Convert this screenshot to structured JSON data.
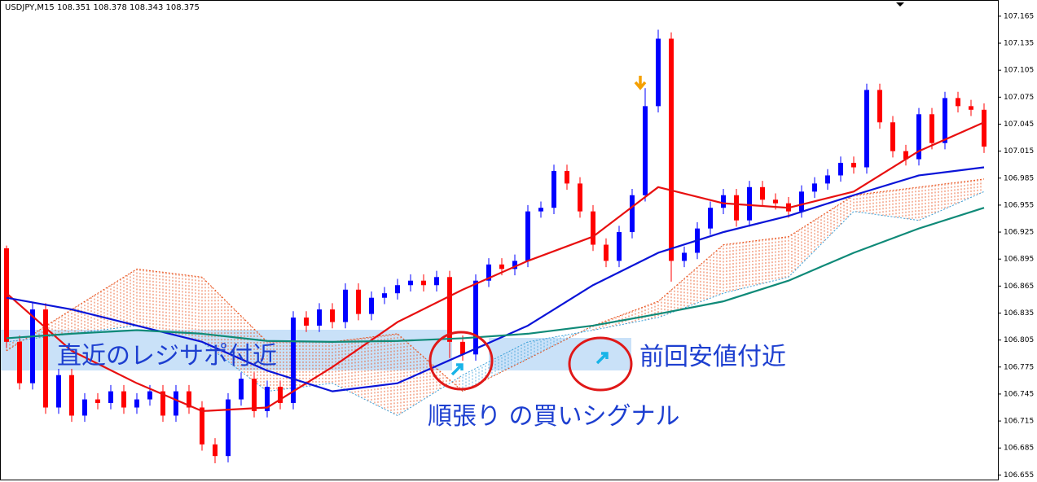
{
  "chart_data": {
    "type": "candlestick",
    "title": "USDJPY,M15  108.351 108.378 108.343 108.375",
    "ylim": [
      106.649,
      107.183
    ],
    "yticks": [
      107.165,
      107.135,
      107.105,
      107.075,
      107.045,
      107.015,
      106.985,
      106.955,
      106.925,
      106.895,
      106.865,
      106.835,
      106.805,
      106.775,
      106.745,
      106.715,
      106.685,
      106.655
    ],
    "up_color": "#0000ff",
    "down_color": "#ff0000",
    "candles": [
      [
        106.907,
        106.91,
        106.796,
        106.803
      ],
      [
        106.803,
        106.81,
        106.75,
        106.757
      ],
      [
        106.757,
        106.846,
        106.75,
        106.839
      ],
      [
        106.839,
        106.846,
        106.723,
        106.73
      ],
      [
        106.73,
        106.773,
        106.723,
        106.766
      ],
      [
        106.766,
        106.773,
        106.714,
        106.721
      ],
      [
        106.721,
        106.746,
        106.714,
        106.739
      ],
      [
        106.739,
        106.746,
        106.728,
        106.735
      ],
      [
        106.735,
        106.755,
        106.728,
        106.748
      ],
      [
        106.748,
        106.755,
        106.723,
        106.73
      ],
      [
        106.73,
        106.746,
        106.723,
        106.739
      ],
      [
        106.739,
        106.755,
        106.732,
        106.748
      ],
      [
        106.748,
        106.755,
        106.714,
        106.721
      ],
      [
        106.721,
        106.755,
        106.714,
        106.748
      ],
      [
        106.748,
        106.755,
        106.723,
        106.73
      ],
      [
        106.73,
        106.737,
        106.682,
        106.689
      ],
      [
        106.689,
        106.696,
        106.668,
        106.676
      ],
      [
        106.676,
        106.746,
        106.669,
        106.739
      ],
      [
        106.739,
        106.769,
        106.732,
        106.762
      ],
      [
        106.762,
        106.769,
        106.719,
        106.726
      ],
      [
        106.726,
        106.76,
        106.719,
        106.753
      ],
      [
        106.753,
        106.76,
        106.728,
        106.735
      ],
      [
        106.735,
        106.837,
        106.728,
        106.83
      ],
      [
        106.83,
        106.837,
        106.814,
        106.821
      ],
      [
        106.821,
        106.846,
        106.814,
        106.839
      ],
      [
        106.839,
        106.846,
        106.818,
        106.825
      ],
      [
        106.825,
        106.868,
        106.818,
        106.861
      ],
      [
        106.861,
        106.868,
        106.827,
        106.834
      ],
      [
        106.834,
        106.859,
        106.827,
        106.852
      ],
      [
        106.852,
        106.864,
        106.845,
        106.857
      ],
      [
        106.857,
        106.873,
        106.85,
        106.866
      ],
      [
        106.866,
        106.878,
        106.859,
        106.871
      ],
      [
        106.871,
        106.878,
        106.859,
        106.866
      ],
      [
        106.866,
        106.882,
        106.859,
        106.875
      ],
      [
        106.875,
        106.882,
        106.785,
        106.803
      ],
      [
        106.803,
        106.81,
        106.782,
        106.789
      ],
      [
        106.789,
        106.878,
        106.782,
        106.871
      ],
      [
        106.871,
        106.896,
        106.864,
        106.889
      ],
      [
        106.889,
        106.896,
        106.877,
        106.884
      ],
      [
        106.884,
        106.9,
        106.877,
        106.893
      ],
      [
        106.893,
        106.955,
        106.886,
        106.948
      ],
      [
        106.948,
        106.959,
        106.941,
        106.952
      ],
      [
        106.952,
        107.0,
        106.945,
        106.993
      ],
      [
        106.993,
        107.0,
        106.972,
        106.979
      ],
      [
        106.979,
        106.986,
        106.941,
        106.948
      ],
      [
        106.948,
        106.955,
        106.904,
        106.911
      ],
      [
        106.911,
        106.918,
        106.886,
        106.893
      ],
      [
        106.893,
        106.932,
        106.886,
        106.925
      ],
      [
        106.925,
        106.973,
        106.918,
        106.966
      ],
      [
        106.966,
        107.085,
        106.959,
        107.065
      ],
      [
        107.065,
        107.15,
        107.058,
        107.14
      ],
      [
        107.14,
        107.147,
        106.87,
        106.893
      ],
      [
        106.893,
        106.909,
        106.886,
        106.902
      ],
      [
        106.902,
        106.936,
        106.895,
        106.929
      ],
      [
        106.929,
        106.959,
        106.922,
        106.952
      ],
      [
        106.952,
        106.973,
        106.945,
        106.966
      ],
      [
        106.966,
        106.973,
        106.931,
        106.938
      ],
      [
        106.938,
        106.982,
        106.931,
        106.975
      ],
      [
        106.975,
        106.982,
        106.954,
        106.961
      ],
      [
        106.961,
        106.968,
        106.95,
        106.957
      ],
      [
        106.957,
        106.964,
        106.941,
        106.948
      ],
      [
        106.948,
        106.977,
        106.941,
        106.97
      ],
      [
        106.97,
        106.986,
        106.963,
        106.979
      ],
      [
        106.979,
        106.995,
        106.972,
        106.988
      ],
      [
        106.988,
        107.009,
        106.981,
        107.002
      ],
      [
        107.002,
        107.009,
        106.99,
        106.997
      ],
      [
        106.997,
        107.09,
        106.99,
        107.083
      ],
      [
        107.083,
        107.09,
        107.04,
        107.047
      ],
      [
        107.047,
        107.054,
        107.008,
        107.015
      ],
      [
        107.015,
        107.022,
        106.999,
        107.006
      ],
      [
        107.006,
        107.063,
        106.999,
        107.056
      ],
      [
        107.056,
        107.063,
        107.017,
        107.024
      ],
      [
        107.024,
        107.081,
        107.017,
        107.074
      ],
      [
        107.074,
        107.081,
        107.058,
        107.065
      ],
      [
        107.065,
        107.072,
        107.054,
        107.061
      ],
      [
        107.061,
        107.068,
        107.013,
        107.02
      ]
    ],
    "x": [
      0,
      5,
      10,
      15,
      20,
      25,
      30,
      35,
      40,
      45,
      50,
      55,
      60,
      65,
      70,
      75
    ],
    "series": [
      {
        "color": "#e81010",
        "values": [
          106.857,
          106.793,
          106.757,
          106.726,
          106.73,
          106.775,
          106.825,
          106.861,
          106.893,
          106.92,
          106.975,
          106.957,
          106.952,
          106.97,
          107.015,
          107.047
        ]
      },
      {
        "color": "#0a14d8",
        "values": [
          106.852,
          106.839,
          106.821,
          106.803,
          106.771,
          106.748,
          106.757,
          106.789,
          106.821,
          106.866,
          106.902,
          106.925,
          106.943,
          106.966,
          106.988,
          106.997
        ]
      },
      {
        "color": "#0f8a78",
        "values": [
          106.807,
          106.812,
          106.816,
          106.812,
          106.804,
          106.803,
          106.804,
          106.807,
          106.812,
          106.821,
          106.834,
          106.848,
          106.871,
          106.902,
          106.929,
          106.952
        ]
      }
    ],
    "cloud": [
      {
        "color": "#e8501a",
        "values": [
          106.793,
          106.839,
          106.884,
          106.875,
          106.803,
          106.803,
          106.812,
          106.748,
          106.784,
          106.821,
          106.848,
          106.911,
          106.92,
          106.966,
          106.975,
          106.984
        ]
      },
      {
        "color": "#3aa0d8",
        "values": [
          106.803,
          106.812,
          106.821,
          106.803,
          106.748,
          106.757,
          106.721,
          106.766,
          106.803,
          106.816,
          106.83,
          106.857,
          106.875,
          106.948,
          106.938,
          106.97
        ]
      }
    ],
    "annotations": [
      "直近のレジサポ付近",
      "前回安値付近",
      "順張り の買いシグナル"
    ]
  }
}
